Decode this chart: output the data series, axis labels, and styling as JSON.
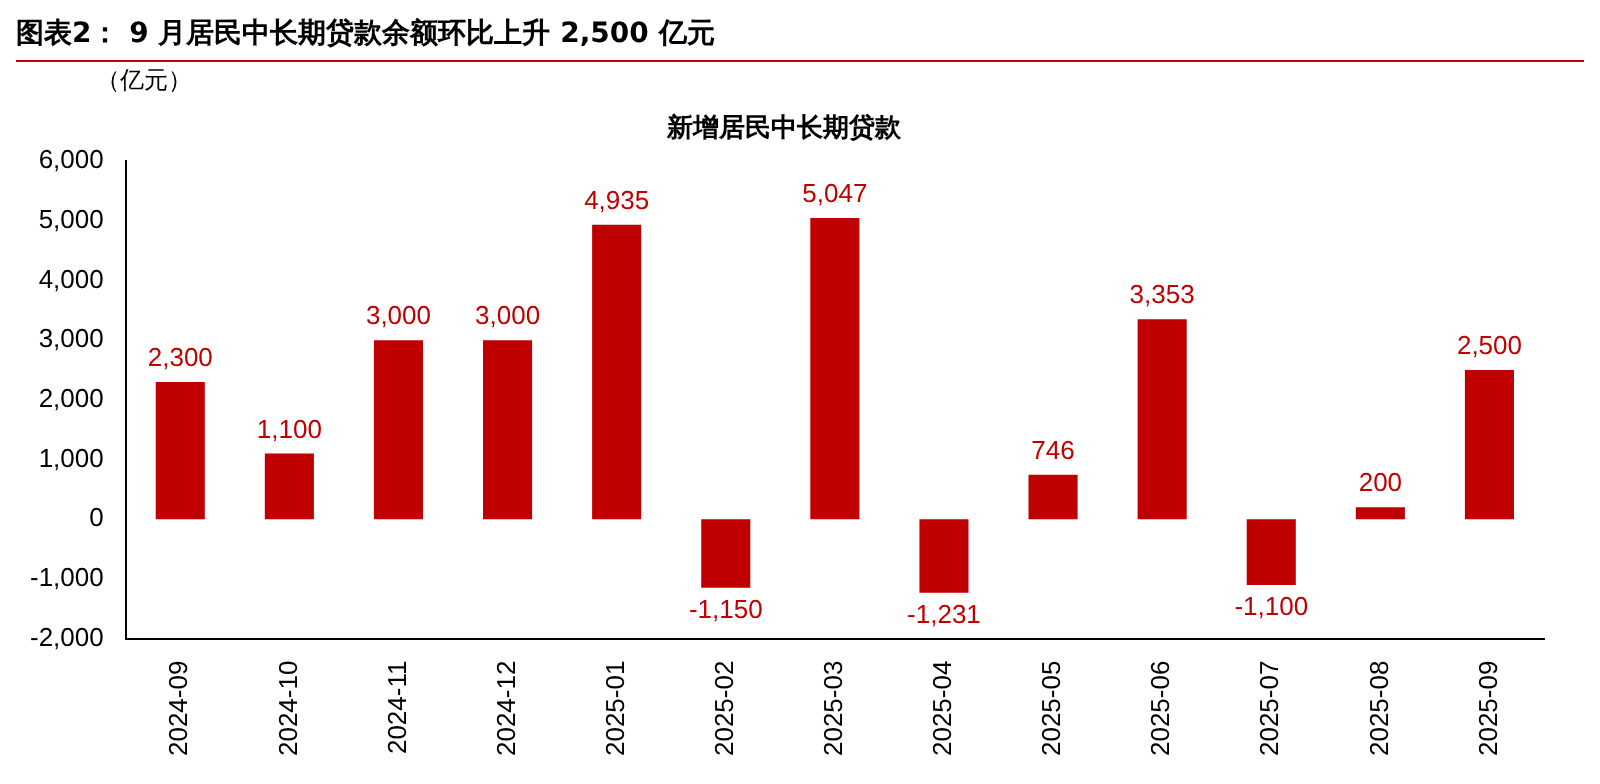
{
  "chart_data": {
    "type": "bar",
    "title": "新增居民中长期贷款",
    "annotations": [
      "图表2：  9 月居民中长期贷款余额环比上升 2,500 亿元"
    ],
    "ylabel": "（亿元）",
    "categories": [
      "2024-09",
      "2024-10",
      "2024-11",
      "2024-12",
      "2025-01",
      "2025-02",
      "2025-03",
      "2025-04",
      "2025-05",
      "2025-06",
      "2025-07",
      "2025-08",
      "2025-09"
    ],
    "values": [
      2300,
      1100,
      3000,
      3000,
      4935,
      -1150,
      5047,
      -1231,
      746,
      3353,
      -1100,
      200,
      2500
    ],
    "color": "#c00000",
    "ylim": [
      -2000,
      6000
    ],
    "yticks": [
      {
        "value": -2000,
        "label": "-2,000"
      },
      {
        "value": -1000,
        "label": "-1,000"
      },
      {
        "value": 0,
        "label": "0"
      },
      {
        "value": 1000,
        "label": "1,000"
      },
      {
        "value": 2000,
        "label": "2,000"
      },
      {
        "value": 3000,
        "label": "3,000"
      },
      {
        "value": 4000,
        "label": "4,000"
      },
      {
        "value": 5000,
        "label": "5,000"
      },
      {
        "value": 6000,
        "label": "6,000"
      }
    ],
    "value_labels": [
      "2,300",
      "1,100",
      "3,000",
      "3,000",
      "4,935",
      "-1,150",
      "5,047",
      "-1,231",
      "746",
      "3,353",
      "-1,100",
      "200",
      "2,500"
    ],
    "grid": false,
    "legend": false
  }
}
